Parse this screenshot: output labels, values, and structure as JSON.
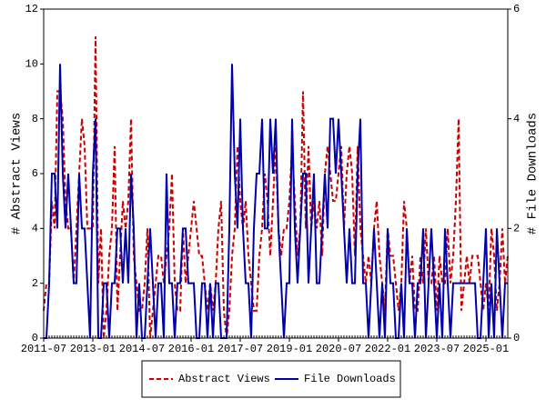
{
  "chart_data": {
    "type": "line",
    "x": [
      "2011-07",
      "2011-08",
      "2011-09",
      "2011-10",
      "2011-11",
      "2011-12",
      "2012-01",
      "2012-02",
      "2012-03",
      "2012-04",
      "2012-05",
      "2012-06",
      "2012-07",
      "2012-08",
      "2012-09",
      "2012-10",
      "2012-11",
      "2012-12",
      "2013-01",
      "2013-02",
      "2013-03",
      "2013-04",
      "2013-05",
      "2013-06",
      "2013-07",
      "2013-08",
      "2013-09",
      "2013-10",
      "2013-11",
      "2013-12",
      "2014-01",
      "2014-02",
      "2014-03",
      "2014-04",
      "2014-05",
      "2014-06",
      "2014-07",
      "2014-08",
      "2014-09",
      "2014-10",
      "2014-11",
      "2014-12",
      "2015-01",
      "2015-02",
      "2015-03",
      "2015-04",
      "2015-05",
      "2015-06",
      "2015-07",
      "2015-08",
      "2015-09",
      "2015-10",
      "2015-11",
      "2015-12",
      "2016-01",
      "2016-02",
      "2016-03",
      "2016-04",
      "2016-05",
      "2016-06",
      "2016-07",
      "2016-08",
      "2016-09",
      "2016-10",
      "2016-11",
      "2016-12",
      "2017-01",
      "2017-02",
      "2017-03",
      "2017-04",
      "2017-05",
      "2017-06",
      "2017-07",
      "2017-08",
      "2017-09",
      "2017-10",
      "2017-11",
      "2017-12",
      "2018-01",
      "2018-02",
      "2018-03",
      "2018-04",
      "2018-05",
      "2018-06",
      "2018-07",
      "2018-08",
      "2018-09",
      "2018-10",
      "2018-11",
      "2018-12",
      "2019-01",
      "2019-02",
      "2019-03",
      "2019-04",
      "2019-05",
      "2019-06",
      "2019-07",
      "2019-08",
      "2019-09",
      "2019-10",
      "2019-11",
      "2019-12",
      "2020-01",
      "2020-02",
      "2020-03",
      "2020-04",
      "2020-05",
      "2020-06",
      "2020-07",
      "2020-08",
      "2020-09",
      "2020-10",
      "2020-11",
      "2020-12",
      "2021-01",
      "2021-02",
      "2021-03",
      "2021-04",
      "2021-05",
      "2021-06",
      "2021-07",
      "2021-08",
      "2021-09",
      "2021-10",
      "2021-11",
      "2021-12",
      "2022-01",
      "2022-02",
      "2022-03",
      "2022-04",
      "2022-05",
      "2022-06",
      "2022-07",
      "2022-08",
      "2022-09",
      "2022-10",
      "2022-11",
      "2022-12",
      "2023-01",
      "2023-02",
      "2023-03",
      "2023-04",
      "2023-05",
      "2023-06",
      "2023-07",
      "2023-08",
      "2023-09",
      "2023-10",
      "2023-11",
      "2023-12",
      "2024-01",
      "2024-02",
      "2024-03",
      "2024-04",
      "2024-05",
      "2024-06",
      "2024-07",
      "2024-08",
      "2024-09",
      "2024-10",
      "2024-11",
      "2024-12",
      "2025-01",
      "2025-02",
      "2025-03",
      "2025-04",
      "2025-05",
      "2025-06",
      "2025-07",
      "2025-08",
      "2025-09"
    ],
    "xlim": [
      "2011-07",
      "2025-09"
    ],
    "xticks": [
      "2011-07",
      "2013-01",
      "2014-07",
      "2016-01",
      "2017-07",
      "2019-01",
      "2020-07",
      "2022-01",
      "2023-07",
      "2025-01"
    ],
    "y_label": "# Abstract Views",
    "y2_label": "# File Downloads",
    "ylim": [
      0,
      12
    ],
    "yticks": [
      0,
      2,
      4,
      6,
      8,
      10,
      12
    ],
    "y2lim": [
      0,
      6
    ],
    "y2ticks": [
      0,
      2,
      4,
      6
    ],
    "legend": "bottom",
    "series": [
      {
        "name": "Abstract Views",
        "color": "#cc0000",
        "dash": true,
        "values": [
          1,
          2,
          2,
          5,
          4,
          9,
          9,
          8,
          5,
          4,
          4,
          2,
          4,
          6,
          8,
          7,
          4,
          4,
          4,
          11,
          2,
          4,
          0,
          1,
          3,
          4,
          7,
          1,
          3,
          5,
          4,
          5,
          8,
          3,
          2,
          1,
          1,
          2,
          4,
          0,
          1,
          2,
          3,
          3,
          2,
          3,
          4,
          6,
          2,
          1,
          1,
          4,
          2,
          3,
          4,
          5,
          4,
          3,
          3,
          2,
          1,
          2,
          1,
          2,
          4,
          5,
          1,
          0,
          1,
          3,
          4,
          7,
          5,
          4,
          5,
          3,
          2,
          1,
          1,
          3,
          4,
          6,
          5,
          3,
          5,
          7,
          4,
          3,
          4,
          4,
          5,
          7,
          5,
          3,
          4,
          9,
          4,
          7,
          4,
          5,
          4,
          5,
          3,
          6,
          7,
          6,
          5,
          5,
          6,
          7,
          4,
          6,
          7,
          6,
          3,
          7,
          4,
          3,
          2,
          3,
          2,
          4,
          5,
          3,
          2,
          1,
          4,
          3,
          3,
          2,
          1,
          2,
          5,
          4,
          2,
          3,
          1,
          1,
          3,
          2,
          4,
          2,
          2,
          3,
          1,
          3,
          2,
          2,
          4,
          2,
          3,
          5,
          8,
          1,
          2,
          3,
          2,
          3,
          3,
          3,
          2,
          1,
          2,
          1,
          4,
          3,
          1,
          2,
          4,
          2,
          3
        ]
      },
      {
        "name": "File Downloads",
        "color": "#0000aa",
        "axis": "y2",
        "values": [
          0,
          0,
          1,
          3,
          3,
          2,
          5,
          3,
          2,
          3,
          2,
          1,
          1,
          3,
          2,
          2,
          1,
          0,
          3,
          4,
          0,
          0,
          1,
          1,
          0,
          1,
          1,
          2,
          2,
          1,
          2,
          1,
          3,
          2,
          0,
          1,
          0,
          0,
          1,
          2,
          1,
          0,
          1,
          1,
          0,
          3,
          1,
          1,
          0,
          1,
          1,
          2,
          2,
          1,
          1,
          1,
          0,
          0,
          1,
          1,
          0,
          1,
          0,
          1,
          1,
          0,
          0,
          0,
          2,
          5,
          3,
          2,
          4,
          2,
          1,
          1,
          0,
          2,
          3,
          3,
          4,
          2,
          2,
          4,
          3,
          4,
          2,
          1,
          0,
          1,
          1,
          4,
          2,
          1,
          2,
          3,
          3,
          1,
          2,
          3,
          1,
          1,
          2,
          3,
          2,
          4,
          4,
          3,
          4,
          3,
          2,
          1,
          2,
          1,
          1,
          3,
          4,
          1,
          1,
          0,
          1,
          2,
          1,
          0,
          1,
          0,
          2,
          1,
          1,
          0,
          0,
          1,
          0,
          2,
          1,
          1,
          0,
          1,
          1,
          2,
          0,
          1,
          2,
          1,
          0,
          1,
          0,
          2,
          1,
          0,
          1,
          1,
          1,
          1,
          1,
          1,
          1,
          1,
          1,
          0,
          0,
          1,
          2,
          0,
          1,
          0,
          2,
          1,
          0,
          1,
          1
        ]
      }
    ]
  }
}
